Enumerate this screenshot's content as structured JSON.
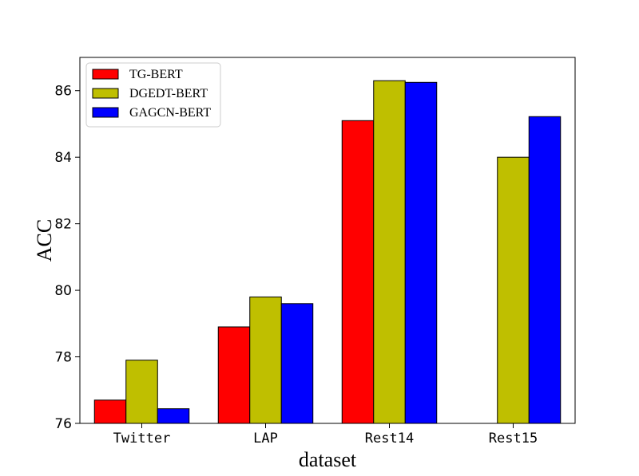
{
  "chart_data": {
    "type": "bar",
    "title": "",
    "xlabel": "dataset",
    "ylabel": "ACC",
    "categories": [
      "Twitter",
      "LAP",
      "Rest14",
      "Rest15"
    ],
    "ylim": [
      76,
      87
    ],
    "yticks": [
      76,
      78,
      80,
      82,
      84,
      86
    ],
    "grid": false,
    "legend": "upper-left",
    "series": [
      {
        "name": "TG-BERT",
        "color": "#ff0000",
        "values": [
          76.7,
          78.9,
          85.1,
          null
        ]
      },
      {
        "name": "DGEDT-BERT",
        "color": "#bfbf00",
        "values": [
          77.9,
          79.8,
          86.3,
          84.0
        ]
      },
      {
        "name": "GAGCN-BERT",
        "color": "#0000ff",
        "values": [
          76.44,
          79.6,
          86.25,
          85.22
        ]
      }
    ]
  }
}
